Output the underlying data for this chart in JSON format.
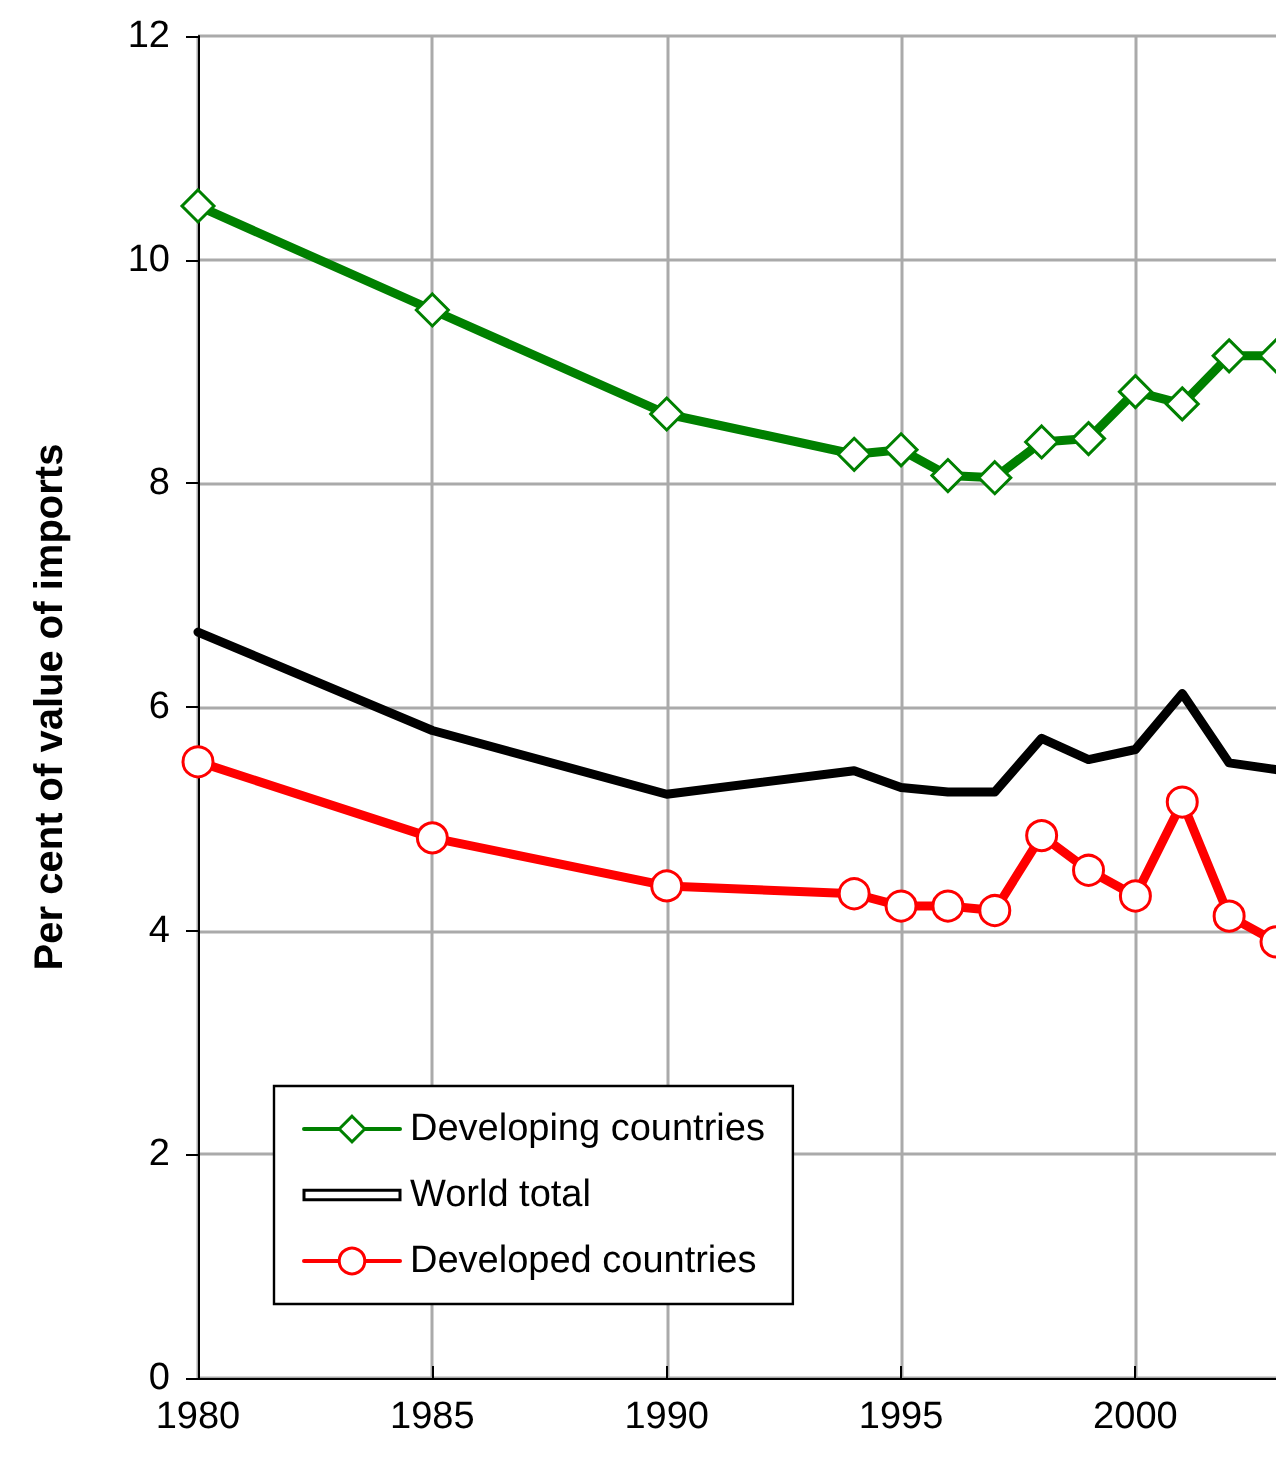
{
  "chart_data": {
    "type": "line",
    "ylabel": "Per cent of value of imports",
    "x": [
      1980,
      1985,
      1990,
      1994,
      1995,
      1996,
      1997,
      1998,
      1999,
      2000,
      2001,
      2002,
      2003
    ],
    "series": [
      {
        "name": "Developing countries",
        "color": "#008000",
        "marker": "diamond",
        "values": [
          10.48,
          9.55,
          8.62,
          8.26,
          8.3,
          8.07,
          8.05,
          8.37,
          8.4,
          8.82,
          8.71,
          9.14,
          9.14
        ]
      },
      {
        "name": "World total",
        "color": "#000000",
        "marker": "none",
        "values": [
          6.67,
          5.79,
          5.22,
          5.43,
          5.28,
          5.24,
          5.24,
          5.72,
          5.53,
          5.62,
          6.12,
          5.5,
          5.44
        ]
      },
      {
        "name": "Developed countries",
        "color": "#ff0000",
        "marker": "circle",
        "values": [
          5.51,
          4.83,
          4.4,
          4.33,
          4.22,
          4.22,
          4.18,
          4.85,
          4.54,
          4.31,
          5.15,
          4.13,
          3.9
        ]
      }
    ],
    "xlim": [
      1980,
      2003
    ],
    "xticks": [
      1980,
      1985,
      1990,
      1995,
      2000
    ],
    "ylim": [
      0,
      12
    ],
    "yticks": [
      0,
      2,
      4,
      6,
      8,
      10,
      12
    ],
    "grid": true,
    "legend": "bottom left",
    "line_style": "solid"
  }
}
